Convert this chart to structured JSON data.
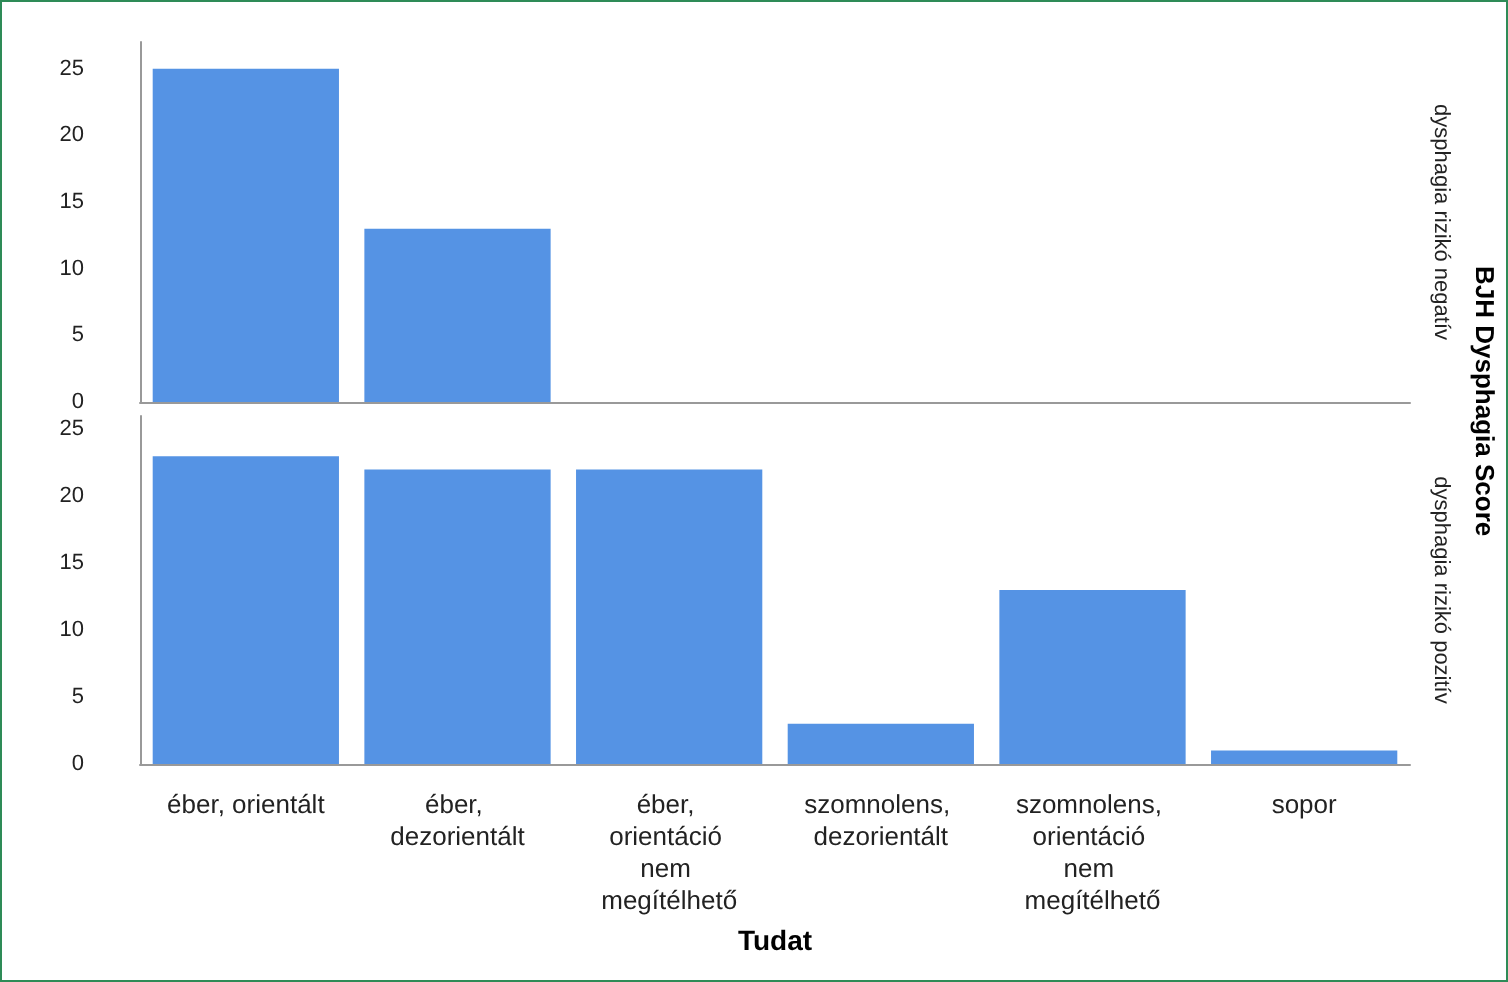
{
  "chart_data": [
    {
      "type": "bar",
      "y2label": "dysphagia rizikó negatív",
      "annotations": [
        "BJH Dysphagia Score"
      ],
      "categories": [
        "éber, orientált",
        "éber, dezorientált",
        "éber, orientáció nem megítélhető",
        "szomnolens, dezorientált",
        "szomnolens, orientáció nem megítélhető",
        "sopor"
      ],
      "values": [
        25,
        13,
        0,
        0,
        0,
        0
      ],
      "color": "#5593e4",
      "ylim": [
        0,
        27
      ],
      "yticks": [
        0,
        5,
        10,
        15,
        20,
        25
      ],
      "grid": false,
      "tick_labels": "y"
    },
    {
      "type": "bar",
      "xlabel": "Tudat",
      "y2label": "dysphagia rizikó pozitív",
      "categories": [
        "éber, orientált",
        "éber, dezorientált",
        "éber, orientáció nem megítélhető",
        "szomnolens, dezorientált",
        "szomnolens, orientáció nem megítélhető",
        "sopor"
      ],
      "values": [
        23,
        22,
        22,
        3,
        13,
        1
      ],
      "color": "#5593e4",
      "ylim": [
        0,
        26
      ],
      "yticks": [
        0,
        5,
        10,
        15,
        20,
        25
      ],
      "grid": false
    }
  ]
}
